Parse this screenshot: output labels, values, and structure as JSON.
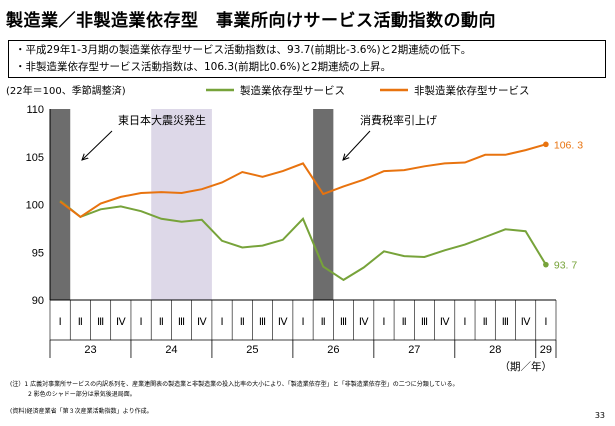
{
  "title": "製造業／非製造業依存型　事業所向けサービス活動指数の動向",
  "bullets": [
    "・平成29年1-3月期の製造業依存型サービス活動指数は、93.7(前期比-3.6%)と2期連続の低下。",
    "・非製造業依存型サービス活動指数は、106.3(前期比0.6%)と2期連続の上昇。"
  ],
  "chart_data": {
    "type": "line",
    "unit_label": "(22年＝100、季節調整済)",
    "ylim": [
      90,
      110
    ],
    "yticks": [
      "90",
      "95",
      "100",
      "105",
      "110"
    ],
    "quarters": [
      "Ⅰ",
      "Ⅱ",
      "Ⅲ",
      "Ⅳ",
      "Ⅰ",
      "Ⅱ",
      "Ⅲ",
      "Ⅳ",
      "Ⅰ",
      "Ⅱ",
      "Ⅲ",
      "Ⅳ",
      "Ⅰ",
      "Ⅱ",
      "Ⅲ",
      "Ⅳ",
      "Ⅰ",
      "Ⅱ",
      "Ⅲ",
      "Ⅳ",
      "Ⅰ",
      "Ⅱ",
      "Ⅲ",
      "Ⅳ",
      "Ⅰ"
    ],
    "years": [
      {
        "label": "23",
        "start": 0,
        "end": 3
      },
      {
        "label": "24",
        "start": 4,
        "end": 7
      },
      {
        "label": "25",
        "start": 8,
        "end": 11
      },
      {
        "label": "26",
        "start": 12,
        "end": 15
      },
      {
        "label": "27",
        "start": 16,
        "end": 19
      },
      {
        "label": "28",
        "start": 20,
        "end": 23
      },
      {
        "label": "29",
        "start": 24,
        "end": 24
      }
    ],
    "period_label": "（期／年）",
    "series": [
      {
        "name": "製造業依存型サービス",
        "color": "#77a33a",
        "values": [
          100.4,
          98.7,
          99.5,
          99.8,
          99.3,
          98.5,
          98.2,
          98.4,
          96.2,
          95.5,
          95.7,
          96.3,
          98.5,
          93.5,
          92.1,
          93.4,
          95.1,
          94.6,
          94.5,
          95.2,
          95.8,
          96.6,
          97.4,
          97.2,
          93.7
        ],
        "end_label": "93. 7"
      },
      {
        "name": "非製造業依存型サービス",
        "color": "#e8730f",
        "values": [
          100.3,
          98.7,
          100.1,
          100.8,
          101.2,
          101.3,
          101.2,
          101.6,
          102.3,
          103.4,
          102.9,
          103.5,
          104.3,
          101.1,
          101.9,
          102.6,
          103.5,
          103.6,
          104.0,
          104.3,
          104.4,
          105.2,
          105.2,
          105.7,
          106.3
        ],
        "end_label": "106. 3"
      }
    ],
    "shaded": [
      {
        "from": 0,
        "to": 0,
        "color": "#6d6d6d"
      },
      {
        "from": 5,
        "to": 7,
        "color": "#ddd8e8"
      },
      {
        "from": 13,
        "to": 13,
        "color": "#6d6d6d"
      }
    ],
    "annotations": [
      {
        "text": "東日本大震災発生",
        "arrow_to_index": 0
      },
      {
        "text": "消費税率引上げ",
        "arrow_to_index": 13
      }
    ]
  },
  "notes": [
    "(注）1 広義対事業所サービスの内訳系列を、産業連関表の製造業と非製造業の投入比率の大小により、「製造業依存型」と「非製造業依存型」の二つに分類している。",
    "　　　2 影色のシャドー部分は景気後退局面。",
    "(資料)経済産業省「第３次産業活動指数」より作成。"
  ],
  "page_number": "33"
}
